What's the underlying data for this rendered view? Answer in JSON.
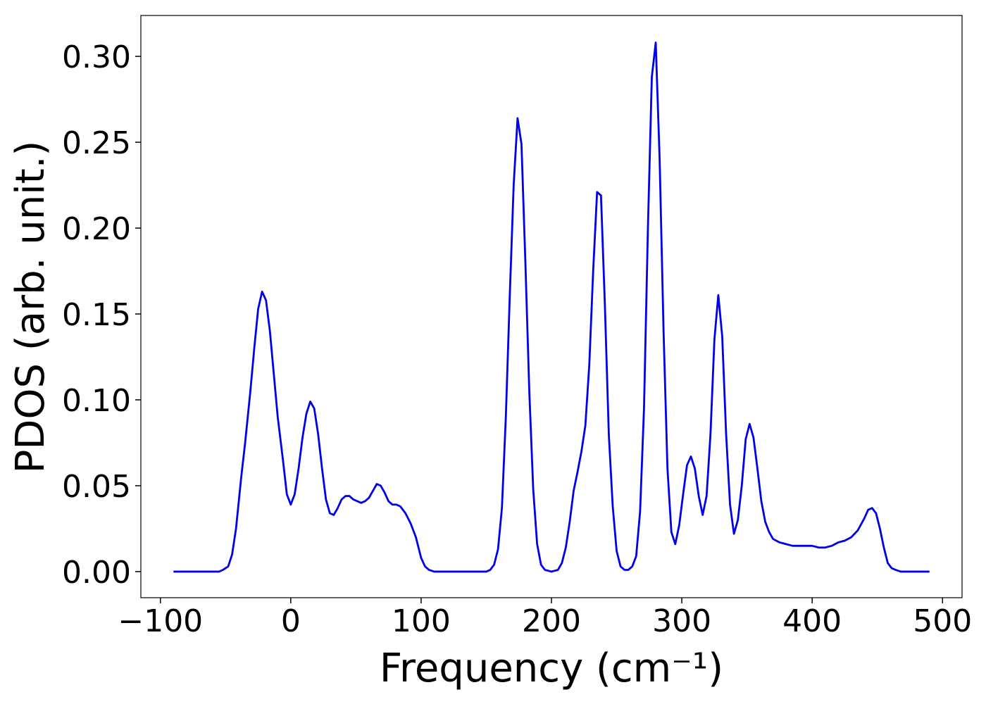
{
  "chart_data": {
    "type": "line",
    "xlabel": "Frequency (cm⁻¹)",
    "ylabel": "PDOS (arb. unit.)",
    "xlim": [
      -115,
      515
    ],
    "ylim": [
      -0.0152,
      0.3238
    ],
    "xticks": [
      {
        "value": -100,
        "label": "−100"
      },
      0,
      100,
      200,
      300,
      400,
      500
    ],
    "yticks": [
      {
        "value": 0,
        "label": "0.00"
      },
      {
        "value": 0.05,
        "label": "0.05"
      },
      {
        "value": 0.1,
        "label": "0.10"
      },
      {
        "value": 0.15,
        "label": "0.15"
      },
      {
        "value": 0.2,
        "label": "0.20"
      },
      {
        "value": 0.25,
        "label": "0.25"
      },
      {
        "value": 0.3,
        "label": "0.30"
      }
    ],
    "grid": false,
    "x": [
      -90,
      -55,
      -52,
      -48,
      -45,
      -42,
      -38,
      -35,
      -31,
      -28,
      -25,
      -22,
      -19,
      -16,
      -13,
      -10,
      -6,
      -3,
      0,
      3,
      6,
      9,
      12,
      15,
      18,
      21,
      24,
      27,
      30,
      33,
      36,
      39,
      42,
      45,
      48,
      51,
      54,
      57,
      60,
      63,
      66,
      69,
      72,
      75,
      78,
      81,
      84,
      88,
      92,
      96,
      100,
      103,
      106,
      110,
      150,
      153,
      156,
      159,
      162,
      165,
      168,
      171,
      174,
      177,
      180,
      183,
      186,
      189,
      192,
      195,
      200,
      205,
      208,
      211,
      214,
      217,
      220,
      223,
      226,
      229,
      232,
      235,
      238,
      241,
      244,
      247,
      250,
      253,
      256,
      259,
      262,
      265,
      268,
      271,
      274,
      277,
      280,
      283,
      286,
      289,
      292,
      295,
      298,
      301,
      304,
      307,
      310,
      313,
      316,
      319,
      322,
      325,
      328,
      331,
      334,
      337,
      340,
      343,
      346,
      349,
      352,
      355,
      358,
      361,
      364,
      367,
      370,
      375,
      380,
      385,
      390,
      395,
      400,
      405,
      410,
      415,
      420,
      425,
      430,
      435,
      440,
      443,
      446,
      449,
      452,
      455,
      458,
      461,
      464,
      468,
      490
    ],
    "series": [
      {
        "name": "PDOS",
        "color": "#0000ee",
        "values": [
          0,
          0,
          0.001,
          0.003,
          0.01,
          0.025,
          0.055,
          0.075,
          0.105,
          0.13,
          0.153,
          0.163,
          0.158,
          0.14,
          0.115,
          0.09,
          0.065,
          0.045,
          0.039,
          0.045,
          0.06,
          0.078,
          0.092,
          0.099,
          0.095,
          0.08,
          0.06,
          0.042,
          0.034,
          0.033,
          0.037,
          0.042,
          0.044,
          0.044,
          0.042,
          0.041,
          0.04,
          0.041,
          0.043,
          0.047,
          0.051,
          0.05,
          0.046,
          0.041,
          0.039,
          0.039,
          0.038,
          0.034,
          0.028,
          0.02,
          0.008,
          0.003,
          0.001,
          0,
          0,
          0.001,
          0.004,
          0.013,
          0.037,
          0.09,
          0.16,
          0.225,
          0.264,
          0.249,
          0.18,
          0.105,
          0.048,
          0.016,
          0.004,
          0.001,
          0,
          0.001,
          0.005,
          0.014,
          0.029,
          0.047,
          0.058,
          0.07,
          0.085,
          0.12,
          0.175,
          0.221,
          0.219,
          0.155,
          0.08,
          0.038,
          0.012,
          0.003,
          0.001,
          0.001,
          0.003,
          0.009,
          0.035,
          0.095,
          0.2,
          0.288,
          0.308,
          0.24,
          0.14,
          0.06,
          0.023,
          0.016,
          0.027,
          0.045,
          0.062,
          0.067,
          0.06,
          0.044,
          0.033,
          0.044,
          0.08,
          0.135,
          0.161,
          0.137,
          0.08,
          0.039,
          0.022,
          0.03,
          0.05,
          0.077,
          0.086,
          0.078,
          0.06,
          0.041,
          0.029,
          0.023,
          0.019,
          0.017,
          0.016,
          0.015,
          0.015,
          0.015,
          0.015,
          0.014,
          0.014,
          0.015,
          0.017,
          0.018,
          0.02,
          0.024,
          0.031,
          0.036,
          0.037,
          0.034,
          0.025,
          0.014,
          0.005,
          0.002,
          0.001,
          0,
          0
        ]
      }
    ]
  }
}
